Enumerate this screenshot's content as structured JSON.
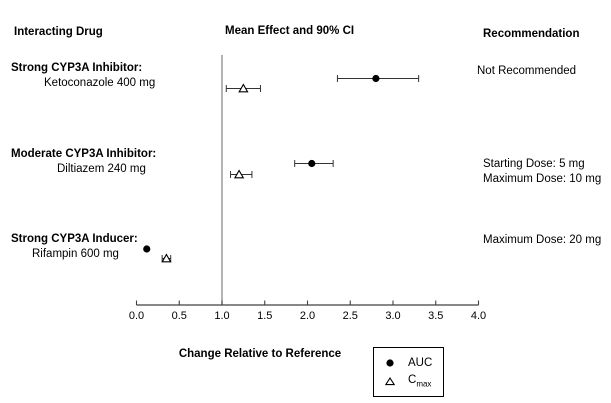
{
  "headers": {
    "left": "Interacting Drug",
    "center": "Mean Effect and 90% CI",
    "right": "Recommendation"
  },
  "rows": [
    {
      "group": "Strong CYP3A Inhibitor:",
      "drug": "Ketoconazole 400 mg",
      "recommendation": [
        "Not Recommended"
      ]
    },
    {
      "group": "Moderate CYP3A Inhibitor:",
      "drug": "Diltiazem 240 mg",
      "recommendation": [
        "Starting Dose: 5 mg",
        "Maximum Dose: 10 mg"
      ]
    },
    {
      "group": "Strong CYP3A Inducer:",
      "drug": "Rifampin 600 mg",
      "recommendation": [
        "Maximum Dose: 20 mg"
      ]
    }
  ],
  "legend": {
    "auc": "AUC",
    "cmax_base": "C",
    "cmax_sub": "max"
  },
  "chart_data": {
    "type": "scatter",
    "subtype": "forest-plot",
    "title": "Mean Effect and 90% CI",
    "xlabel": "Change Relative to Reference",
    "xlim": [
      0.0,
      4.0
    ],
    "x_ticks": [
      0.0,
      0.5,
      1.0,
      1.5,
      2.0,
      2.5,
      3.0,
      3.5,
      4.0
    ],
    "x_tick_labels": [
      "0.0",
      "0.5",
      "1.0",
      "1.5",
      "2.0",
      "2.5",
      "3.0",
      "3.5",
      "4.0"
    ],
    "reference_line_x": 1.0,
    "grid": false,
    "legend_position": "bottom-right",
    "categories": [
      "Ketoconazole 400 mg",
      "Diltiazem 240 mg",
      "Rifampin 600 mg"
    ],
    "series": [
      {
        "name": "AUC",
        "marker": "filled-circle",
        "points": [
          {
            "category": "Ketoconazole 400 mg",
            "mean": 2.8,
            "ci_low": 2.35,
            "ci_high": 3.3
          },
          {
            "category": "Diltiazem 240 mg",
            "mean": 2.05,
            "ci_low": 1.85,
            "ci_high": 2.3
          },
          {
            "category": "Rifampin 600 mg",
            "mean": 0.12,
            "ci_low": null,
            "ci_high": null
          }
        ]
      },
      {
        "name": "Cmax",
        "marker": "open-triangle",
        "points": [
          {
            "category": "Ketoconazole 400 mg",
            "mean": 1.25,
            "ci_low": 1.05,
            "ci_high": 1.45
          },
          {
            "category": "Diltiazem 240 mg",
            "mean": 1.2,
            "ci_low": 1.1,
            "ci_high": 1.35
          },
          {
            "category": "Rifampin 600 mg",
            "mean": 0.35,
            "ci_low": 0.3,
            "ci_high": 0.4
          }
        ]
      }
    ]
  },
  "colors": {
    "text": "#000000",
    "axis": "#404040",
    "reference_line": "#808080",
    "error_bar": "#333333",
    "marker": "#000000"
  }
}
